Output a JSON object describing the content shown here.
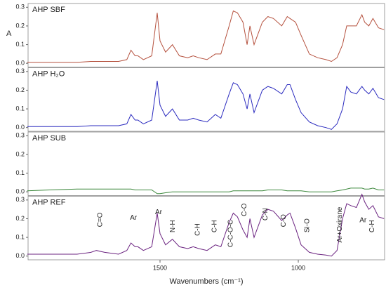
{
  "chart_data": {
    "type": "line",
    "xlabel": "Wavenumbers (cm⁻¹)",
    "ylabel": "A",
    "xlim": [
      1977,
      688
    ],
    "xticks": [
      1500,
      1000
    ],
    "ylim": [
      -0.02,
      0.32
    ],
    "yticks": [
      {
        "value": 0,
        "label": "0.0"
      },
      {
        "value": 0.1,
        "label": "0.1"
      },
      {
        "value": 0.2,
        "label": "0.2"
      },
      {
        "value": 0.3,
        "label": "0.3"
      }
    ],
    "x": [
      1980,
      1900,
      1800,
      1750,
      1730,
      1700,
      1650,
      1620,
      1605,
      1590,
      1580,
      1560,
      1530,
      1510,
      1500,
      1480,
      1455,
      1430,
      1400,
      1380,
      1360,
      1330,
      1300,
      1280,
      1250,
      1235,
      1220,
      1200,
      1185,
      1175,
      1160,
      1130,
      1110,
      1090,
      1060,
      1040,
      1030,
      1010,
      990,
      960,
      930,
      900,
      880,
      860,
      840,
      825,
      810,
      790,
      770,
      760,
      745,
      730,
      710,
      690
    ],
    "series": [
      {
        "name": "AHP SBF",
        "color": "#b5513e",
        "values": [
          0.005,
          0.005,
          0.005,
          0.01,
          0.01,
          0.01,
          0.01,
          0.02,
          0.07,
          0.04,
          0.04,
          0.02,
          0.04,
          0.27,
          0.12,
          0.06,
          0.1,
          0.04,
          0.03,
          0.04,
          0.03,
          0.02,
          0.05,
          0.05,
          0.2,
          0.28,
          0.27,
          0.22,
          0.1,
          0.2,
          0.1,
          0.22,
          0.25,
          0.24,
          0.2,
          0.25,
          0.24,
          0.22,
          0.15,
          0.05,
          0.03,
          0.02,
          0.01,
          0.03,
          0.1,
          0.2,
          0.2,
          0.2,
          0.26,
          0.22,
          0.2,
          0.24,
          0.19,
          0.18
        ]
      },
      {
        "name": "AHP H₂O",
        "color": "#2b2bbf",
        "values": [
          0.005,
          0.005,
          0.005,
          0.01,
          0.01,
          0.01,
          0.01,
          0.02,
          0.07,
          0.04,
          0.04,
          0.02,
          0.04,
          0.25,
          0.12,
          0.06,
          0.1,
          0.04,
          0.04,
          0.05,
          0.04,
          0.03,
          0.07,
          0.05,
          0.18,
          0.24,
          0.23,
          0.18,
          0.1,
          0.18,
          0.08,
          0.2,
          0.22,
          0.21,
          0.18,
          0.23,
          0.23,
          0.15,
          0.08,
          0.03,
          0.01,
          0,
          -0.01,
          0.02,
          0.1,
          0.22,
          0.19,
          0.18,
          0.22,
          0.2,
          0.18,
          0.21,
          0.16,
          0.15
        ]
      },
      {
        "name": "AHP SUB",
        "color": "#3b873b",
        "values": [
          0.005,
          0.01,
          0.015,
          0.015,
          0.015,
          0.015,
          0.015,
          0.015,
          0.015,
          0.01,
          0.01,
          0.01,
          0.01,
          -0.01,
          -0.01,
          -0.005,
          0,
          0,
          0,
          0,
          0,
          0,
          0,
          0,
          0,
          0.005,
          0.005,
          0.005,
          0.005,
          0.005,
          0.005,
          0.005,
          0.01,
          0.01,
          0.01,
          0.005,
          0.005,
          0.005,
          0.005,
          0,
          0,
          0,
          0,
          0.005,
          0.01,
          0.015,
          0.02,
          0.02,
          0.02,
          0.015,
          0.015,
          0.02,
          0.01,
          0.01
        ]
      },
      {
        "name": "AHP REF",
        "color": "#6b2380",
        "values": [
          0.01,
          0.01,
          0.01,
          0.02,
          0.03,
          0.02,
          0.01,
          0.03,
          0.07,
          0.05,
          0.05,
          0.03,
          0.05,
          0.23,
          0.12,
          0.06,
          0.09,
          0.05,
          0.04,
          0.05,
          0.04,
          0.03,
          0.06,
          0.05,
          0.18,
          0.23,
          0.21,
          0.14,
          0.1,
          0.2,
          0.1,
          0.22,
          0.25,
          0.24,
          0.19,
          0.22,
          0.23,
          0.15,
          0.06,
          0.02,
          0.01,
          0.005,
          0,
          0.03,
          0.2,
          0.28,
          0.27,
          0.26,
          0.33,
          0.29,
          0.25,
          0.27,
          0.21,
          0.2
        ],
        "annotations": [
          {
            "text": "C=O",
            "x": 1716,
            "y": 0.155
          },
          {
            "text": "Ar",
            "x": 1596,
            "y": 0.205
          },
          {
            "text": "Ar",
            "x": 1505,
            "y": 0.235
          },
          {
            "text": "N-H",
            "x": 1454,
            "y": 0.126
          },
          {
            "text": "C-H",
            "x": 1363,
            "y": 0.108
          },
          {
            "text": "C-H",
            "x": 1302,
            "y": 0.126
          },
          {
            "text": "C-C-O-C",
            "x": 1244,
            "y": 0.047
          },
          {
            "text": "C-O",
            "x": 1195,
            "y": 0.213
          },
          {
            "text": "C-N",
            "x": 1119,
            "y": 0.19
          },
          {
            "text": "C-O",
            "x": 1053,
            "y": 0.155
          },
          {
            "text": "Si-O",
            "x": 967,
            "y": 0.126
          },
          {
            "text": "Ar+Oxirane",
            "x": 850,
            "y": 0.072
          },
          {
            "text": "Ar",
            "x": 766,
            "y": 0.19
          },
          {
            "text": "C-H",
            "x": 733,
            "y": 0.126
          }
        ]
      }
    ]
  }
}
